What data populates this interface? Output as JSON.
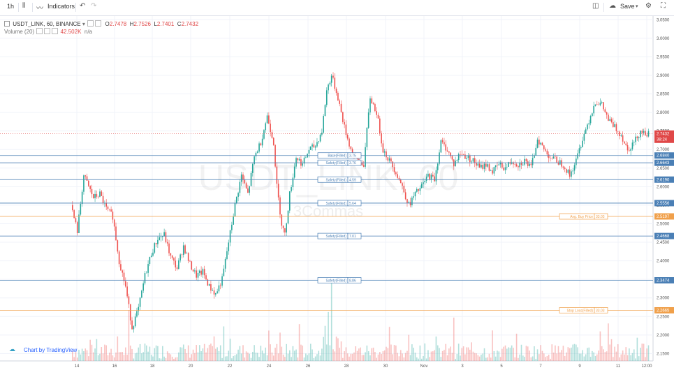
{
  "toolbar": {
    "interval": "1h",
    "indicators_label": "Indicators",
    "save_label": "Save"
  },
  "legend": {
    "symbol": "USDT_LINK, 60, BINANCE",
    "open_label": "O",
    "open": "2.7478",
    "high_label": "H",
    "high": "2.7526",
    "low_label": "L",
    "low": "2.7401",
    "close_label": "C",
    "close": "2.7432",
    "volume_label": "Volume (20)",
    "volume_value": "42.502K",
    "volume_extra": "n/a"
  },
  "watermark": {
    "title": "USDT_LINK, 60",
    "subtitle": "3Commas"
  },
  "brand": "Chart by TradingView",
  "colors": {
    "up": "#26a69a",
    "down": "#ef5350",
    "blue_line": "#4a7fb5",
    "orange_line": "#f0a04b",
    "last_price": "#e04848"
  },
  "chart_data": {
    "type": "candlestick",
    "price_axis": {
      "ticks": [
        "3.0500",
        "3.0000",
        "2.9500",
        "2.9000",
        "2.8500",
        "2.8000",
        "2.7500",
        "2.7000",
        "2.6500",
        "2.6000",
        "2.5500",
        "2.5000",
        "2.4500",
        "2.4000",
        "2.3500",
        "2.3000",
        "2.2500",
        "2.2000",
        "2.1500"
      ],
      "ylim": [
        2.13,
        3.06
      ]
    },
    "time_axis": {
      "ticks": [
        "14",
        "16",
        "18",
        "20",
        "22",
        "24",
        "26",
        "28",
        "30",
        "Nov",
        "3",
        "5",
        "7",
        "9",
        "11",
        "12:00"
      ]
    },
    "last_price": {
      "value": "2.7432",
      "sub": "38:24"
    },
    "levels": [
      {
        "label": "Base(Filled)",
        "qty": "3.75",
        "price": 2.684,
        "price_label": "2.6840",
        "kind": "blue"
      },
      {
        "label": "Safety(Filled)",
        "qty": "3.76",
        "price": 2.6643,
        "price_label": "2.6643",
        "kind": "blue"
      },
      {
        "label": "Safety(Filled)",
        "qty": "4.59",
        "price": 2.619,
        "price_label": "2.6190",
        "kind": "blue"
      },
      {
        "label": "Safety(Filled)",
        "qty": "5.64",
        "price": 2.5556,
        "price_label": "2.5556",
        "kind": "blue"
      },
      {
        "label": "Avg. Buy Price",
        "qty": "33.03",
        "price": 2.5197,
        "price_label": "2.5197",
        "kind": "orange"
      },
      {
        "label": "Safety(Filled)",
        "qty": "7.01",
        "price": 2.4668,
        "price_label": "2.4668",
        "kind": "blue"
      },
      {
        "label": "Safety(Filled)",
        "qty": "8.86",
        "price": 2.3474,
        "price_label": "2.3474",
        "kind": "blue"
      },
      {
        "label": "Stop Loss(Filled)",
        "qty": "33.03",
        "price": 2.2665,
        "price_label": "2.2665",
        "kind": "orange"
      }
    ],
    "price_path": [
      [
        0,
        2.55
      ],
      [
        4,
        2.48
      ],
      [
        8,
        2.63
      ],
      [
        14,
        2.57
      ],
      [
        18,
        2.58
      ],
      [
        22,
        2.54
      ],
      [
        26,
        2.52
      ],
      [
        30,
        2.4
      ],
      [
        34,
        2.33
      ],
      [
        38,
        2.22
      ],
      [
        42,
        2.27
      ],
      [
        46,
        2.36
      ],
      [
        50,
        2.42
      ],
      [
        54,
        2.46
      ],
      [
        58,
        2.47
      ],
      [
        62,
        2.41
      ],
      [
        66,
        2.38
      ],
      [
        70,
        2.44
      ],
      [
        74,
        2.39
      ],
      [
        78,
        2.36
      ],
      [
        82,
        2.37
      ],
      [
        86,
        2.33
      ],
      [
        90,
        2.31
      ],
      [
        94,
        2.35
      ],
      [
        98,
        2.45
      ],
      [
        102,
        2.55
      ],
      [
        106,
        2.63
      ],
      [
        110,
        2.58
      ],
      [
        114,
        2.68
      ],
      [
        118,
        2.72
      ],
      [
        122,
        2.79
      ],
      [
        126,
        2.72
      ],
      [
        128,
        2.6
      ],
      [
        131,
        2.5
      ],
      [
        133,
        2.47
      ],
      [
        136,
        2.58
      ],
      [
        140,
        2.68
      ],
      [
        144,
        2.66
      ],
      [
        148,
        2.7
      ],
      [
        152,
        2.71
      ],
      [
        156,
        2.75
      ],
      [
        159,
        2.86
      ],
      [
        162,
        2.9
      ],
      [
        166,
        2.84
      ],
      [
        170,
        2.76
      ],
      [
        174,
        2.7
      ],
      [
        178,
        2.67
      ],
      [
        182,
        2.66
      ],
      [
        186,
        2.84
      ],
      [
        190,
        2.8
      ],
      [
        194,
        2.7
      ],
      [
        198,
        2.67
      ],
      [
        202,
        2.64
      ],
      [
        206,
        2.6
      ],
      [
        210,
        2.55
      ],
      [
        214,
        2.58
      ],
      [
        218,
        2.6
      ],
      [
        222,
        2.63
      ],
      [
        226,
        2.62
      ],
      [
        230,
        2.72
      ],
      [
        234,
        2.7
      ],
      [
        238,
        2.66
      ],
      [
        242,
        2.69
      ],
      [
        246,
        2.68
      ],
      [
        250,
        2.67
      ],
      [
        254,
        2.65
      ],
      [
        258,
        2.66
      ],
      [
        262,
        2.64
      ],
      [
        266,
        2.66
      ],
      [
        270,
        2.65
      ],
      [
        274,
        2.67
      ],
      [
        278,
        2.66
      ],
      [
        282,
        2.67
      ],
      [
        286,
        2.65
      ],
      [
        290,
        2.73
      ],
      [
        294,
        2.7
      ],
      [
        298,
        2.68
      ],
      [
        302,
        2.67
      ],
      [
        306,
        2.66
      ],
      [
        310,
        2.63
      ],
      [
        314,
        2.67
      ],
      [
        318,
        2.73
      ],
      [
        322,
        2.78
      ],
      [
        326,
        2.83
      ],
      [
        330,
        2.82
      ],
      [
        334,
        2.78
      ],
      [
        338,
        2.76
      ],
      [
        342,
        2.74
      ],
      [
        346,
        2.7
      ],
      [
        350,
        2.72
      ],
      [
        354,
        2.75
      ],
      [
        358,
        2.7432
      ]
    ],
    "volume_ylim": [
      0,
      1
    ]
  }
}
